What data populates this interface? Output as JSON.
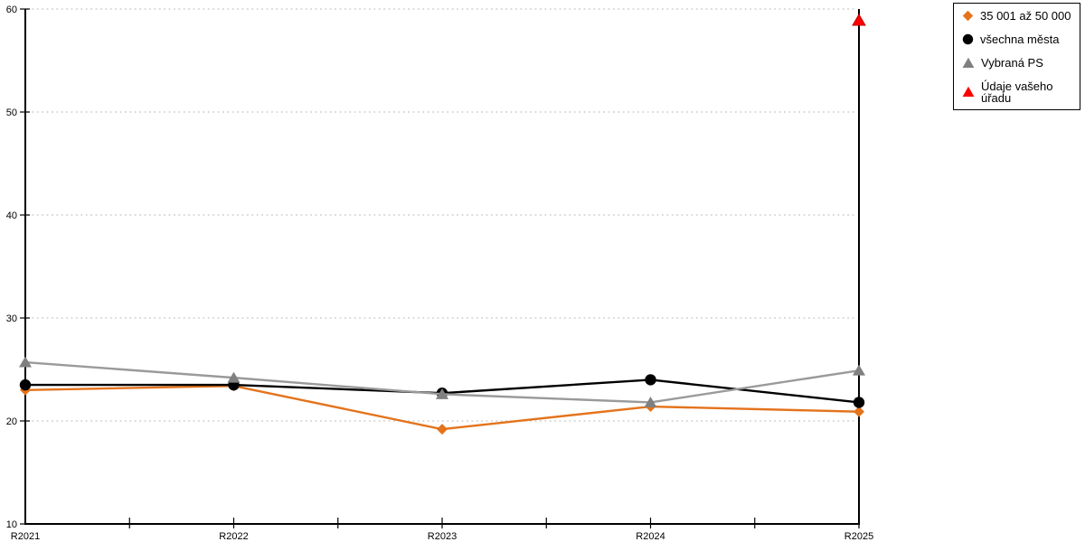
{
  "chart_data": {
    "type": "line",
    "title": "",
    "xlabel": "",
    "ylabel": "",
    "categories": [
      "R2021",
      "R2022",
      "R2023",
      "R2024",
      "R2025"
    ],
    "series": [
      {
        "name": "35 001 až 50 000",
        "marker": "diamond",
        "color": "#E4731C",
        "marker_color": "#E4731C",
        "values": [
          23.0,
          23.4,
          19.2,
          21.4,
          20.9
        ]
      },
      {
        "name": "všechna města",
        "marker": "circle",
        "color": "#000000",
        "marker_color": "#000000",
        "values": [
          23.5,
          23.5,
          22.7,
          24.0,
          21.8
        ]
      },
      {
        "name": "Vybraná PS",
        "marker": "triangle",
        "color": "#9A9A9A",
        "marker_color": "#808080",
        "values": [
          25.7,
          24.2,
          22.6,
          21.8,
          24.9
        ]
      },
      {
        "name": "Údaje vašeho úřadu",
        "marker": "triangle",
        "color": "#FF0000",
        "marker_color": "#FF0000",
        "marker_stroke": "#C00000",
        "line": false,
        "values": [
          null,
          null,
          null,
          null,
          58.9
        ]
      }
    ],
    "ylim": [
      10,
      60
    ],
    "yticks": [
      10,
      20,
      30,
      40,
      50,
      60
    ],
    "grid": "dotted horizontal gridlines",
    "legend_position": "top-right, boxed, outside plot"
  }
}
